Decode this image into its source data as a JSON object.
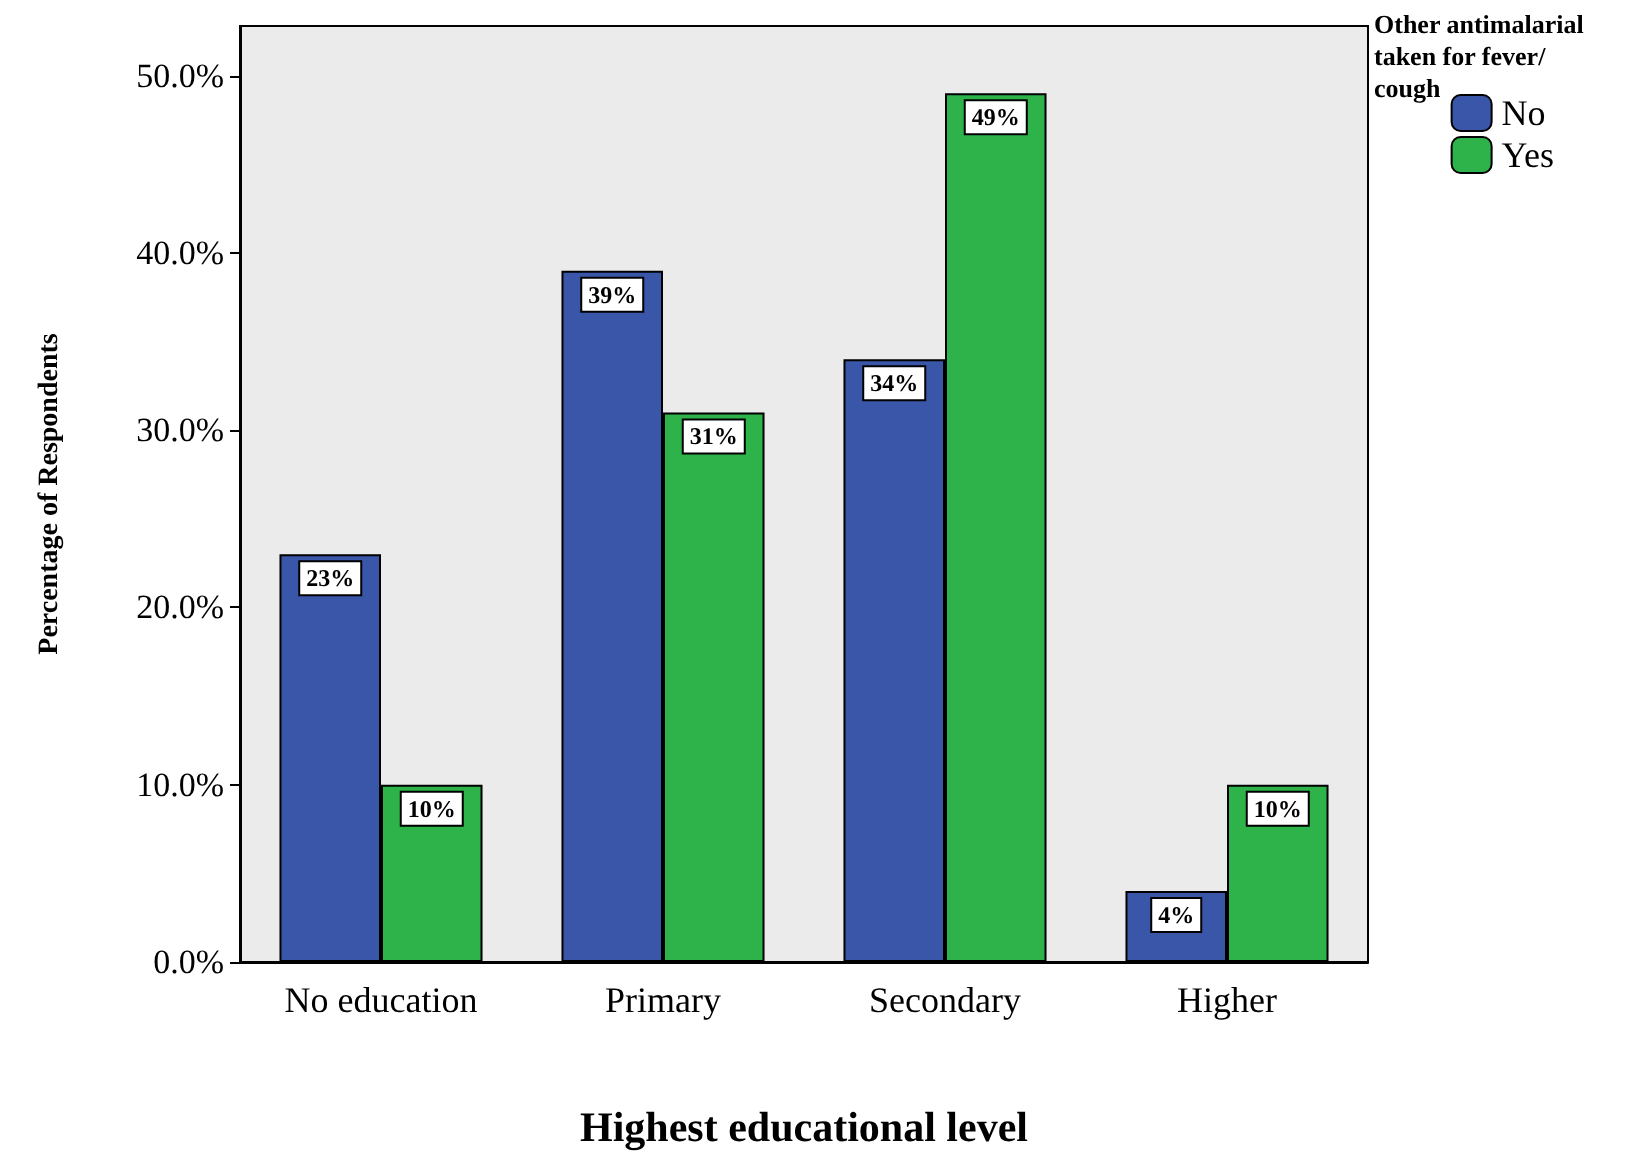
{
  "chart_data": {
    "type": "bar",
    "xlabel": "Highest educational level",
    "ylabel": "Percentage of Respondents",
    "legend_title": "Other antimalarial taken for fever/cough",
    "categories": [
      "No education",
      "Primary",
      "Secondary",
      "Higher"
    ],
    "series": [
      {
        "name": "No",
        "color": "#3a56a8",
        "values": [
          23,
          39,
          34,
          4
        ],
        "value_labels": [
          "23%",
          "39%",
          "34%",
          "4%"
        ]
      },
      {
        "name": "Yes",
        "color": "#2db34a",
        "values": [
          10,
          31,
          49,
          10
        ],
        "value_labels": [
          "10%",
          "31%",
          "49%",
          "10%"
        ]
      }
    ],
    "ylim": [
      0,
      52.8
    ],
    "yticks": [
      {
        "value": 0,
        "label": "0.0%"
      },
      {
        "value": 10,
        "label": "10.0%"
      },
      {
        "value": 20,
        "label": "20.0%"
      },
      {
        "value": 30,
        "label": "30.0%"
      },
      {
        "value": 40,
        "label": "40.0%"
      },
      {
        "value": 50,
        "label": "50.0%"
      }
    ],
    "grid": false,
    "legend": "top right"
  }
}
